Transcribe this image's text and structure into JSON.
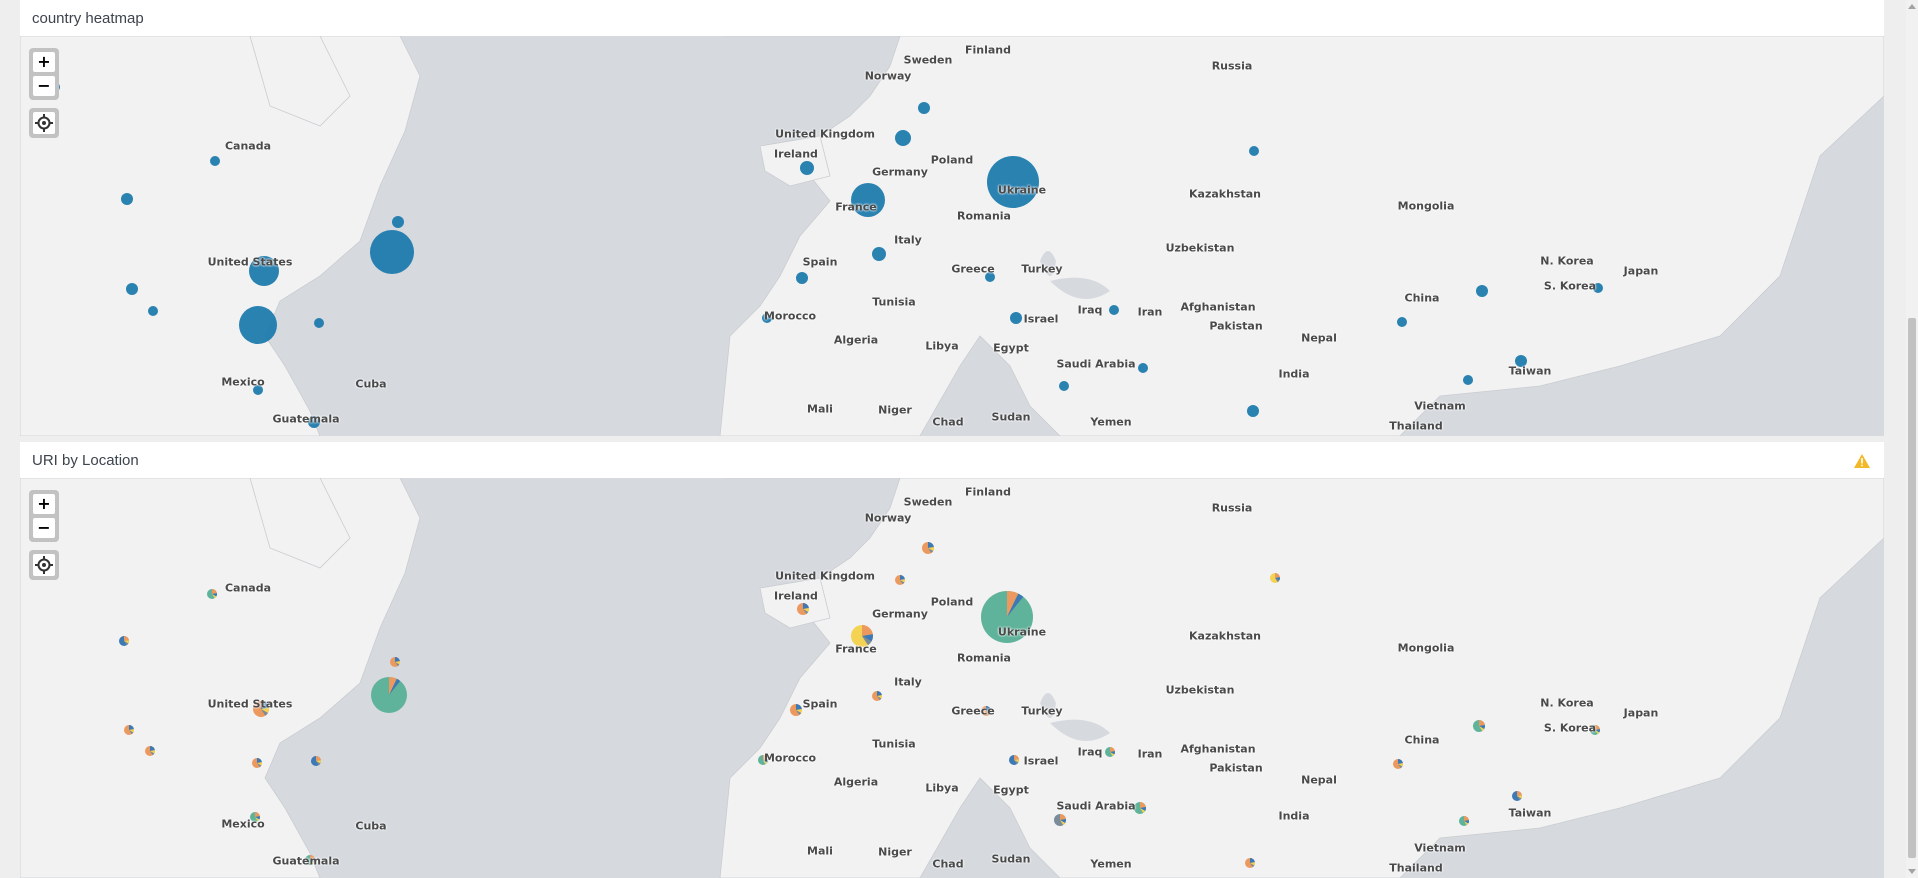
{
  "panels": [
    {
      "title": "country heatmap"
    },
    {
      "title": "URI by Location"
    }
  ],
  "controls": {
    "zoom_in": "+",
    "zoom_out": "−",
    "locate_icon": "crosshair-icon"
  },
  "warning_icon": "warning-triangle-icon",
  "colors": {
    "land": "#f2f2f2",
    "water": "#d6dadf",
    "bubble": "#1f7bad",
    "pie_green": "#5fb39a",
    "pie_orange": "#ec9960",
    "pie_yellow": "#f4d252",
    "pie_blue": "#3c79b5",
    "pie_gray": "#7a8b99",
    "warning": "#f2b827"
  },
  "countries": [
    "Sweden",
    "Finland",
    "Norway",
    "Russia",
    "United Kingdom",
    "Ireland",
    "Germany",
    "Poland",
    "Ukraine",
    "Canada",
    "Kazakhstan",
    "Mongolia",
    "France",
    "Romania",
    "United States",
    "Italy",
    "Spain",
    "Greece",
    "Turkey",
    "Uzbekistan",
    "N. Korea",
    "Japan",
    "S. Korea",
    "Tunisia",
    "Afghanistan",
    "China",
    "Iraq",
    "Iran",
    "Morocco",
    "Israel",
    "Pakistan",
    "Nepal",
    "Algeria",
    "Libya",
    "Egypt",
    "Saudi Arabia",
    "India",
    "Taiwan",
    "Mexico",
    "Cuba",
    "Vietnam",
    "Mali",
    "Niger",
    "Chad",
    "Sudan",
    "Yemen",
    "Guatemala",
    "Thailand"
  ]
}
